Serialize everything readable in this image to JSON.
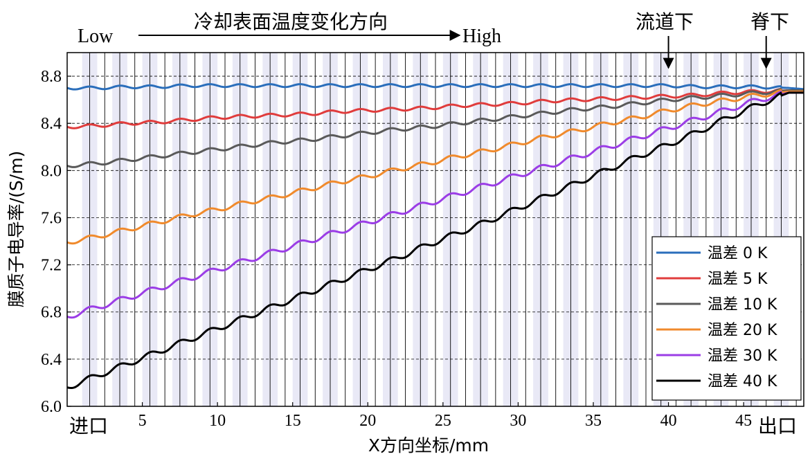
{
  "chart_data": {
    "type": "line",
    "xlabel": "X方向坐标/mm",
    "ylabel": "膜质子电导率/(S/m)",
    "xlim": [
      0,
      49
    ],
    "ylim": [
      6.0,
      9.0
    ],
    "x_ticks": [
      5,
      10,
      15,
      20,
      25,
      30,
      35,
      40,
      45
    ],
    "y_ticks": [
      6.0,
      6.4,
      6.8,
      7.2,
      7.6,
      8.0,
      8.4,
      8.8
    ],
    "x_edge_labels": {
      "left": "进口",
      "right": "出口"
    },
    "grid": "horizontal dashed",
    "legend_position": "lower-right",
    "x": [
      0,
      2,
      4,
      6,
      8,
      10,
      12,
      14,
      16,
      18,
      20,
      22,
      24,
      26,
      28,
      30,
      32,
      34,
      36,
      38,
      40,
      42,
      44,
      46,
      48,
      49
    ],
    "series": [
      {
        "name": "温差 0 K",
        "color": "#2a6ebb",
        "values": [
          8.7,
          8.7,
          8.71,
          8.71,
          8.72,
          8.72,
          8.72,
          8.72,
          8.72,
          8.72,
          8.72,
          8.72,
          8.72,
          8.72,
          8.72,
          8.72,
          8.72,
          8.72,
          8.72,
          8.72,
          8.72,
          8.71,
          8.71,
          8.71,
          8.7,
          8.69
        ]
      },
      {
        "name": "温差 5 K",
        "color": "#e03c3c",
        "values": [
          8.37,
          8.38,
          8.4,
          8.41,
          8.43,
          8.45,
          8.46,
          8.47,
          8.48,
          8.5,
          8.51,
          8.52,
          8.53,
          8.55,
          8.56,
          8.57,
          8.59,
          8.6,
          8.61,
          8.62,
          8.63,
          8.64,
          8.66,
          8.67,
          8.68,
          8.68
        ]
      },
      {
        "name": "温差 10 K",
        "color": "#5a5a5a",
        "values": [
          8.04,
          8.06,
          8.09,
          8.12,
          8.15,
          8.18,
          8.21,
          8.24,
          8.26,
          8.29,
          8.32,
          8.35,
          8.37,
          8.4,
          8.43,
          8.46,
          8.49,
          8.52,
          8.54,
          8.57,
          8.6,
          8.62,
          8.64,
          8.66,
          8.68,
          8.68
        ]
      },
      {
        "name": "温差 20 K",
        "color": "#f08a2c",
        "values": [
          7.39,
          7.44,
          7.5,
          7.56,
          7.62,
          7.67,
          7.73,
          7.78,
          7.84,
          7.9,
          7.95,
          8.01,
          8.06,
          8.12,
          8.17,
          8.23,
          8.29,
          8.34,
          8.4,
          8.45,
          8.51,
          8.56,
          8.6,
          8.64,
          8.67,
          8.67
        ]
      },
      {
        "name": "温差 30 K",
        "color": "#9b3de6",
        "values": [
          6.76,
          6.84,
          6.92,
          7.0,
          7.08,
          7.16,
          7.24,
          7.32,
          7.4,
          7.48,
          7.56,
          7.64,
          7.72,
          7.8,
          7.88,
          7.96,
          8.04,
          8.12,
          8.2,
          8.28,
          8.36,
          8.44,
          8.52,
          8.6,
          8.66,
          8.66
        ]
      },
      {
        "name": "温差 40 K",
        "color": "#000000",
        "values": [
          6.16,
          6.26,
          6.36,
          6.46,
          6.56,
          6.66,
          6.76,
          6.86,
          6.96,
          7.06,
          7.16,
          7.26,
          7.37,
          7.47,
          7.57,
          7.68,
          7.79,
          7.9,
          8.01,
          8.12,
          8.22,
          8.33,
          8.45,
          8.56,
          8.66,
          8.66
        ]
      }
    ],
    "channels": {
      "count": 24,
      "pitch_mm": 2,
      "ridge_shading_color": "#e9e9f6"
    },
    "annotations": {
      "low": "Low",
      "high": "High",
      "arrow_label": "冷却表面温度变化方向",
      "channel_below": "流道下",
      "ridge_below": "脊下",
      "channel_below_x": 40,
      "ridge_below_x": 46.5
    }
  }
}
